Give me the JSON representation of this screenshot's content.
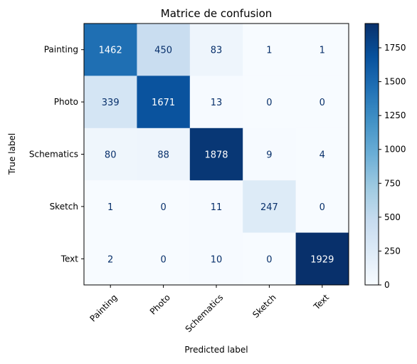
{
  "chart_data": {
    "type": "heatmap",
    "title": "Matrice de confusion",
    "xlabel": "Predicted label",
    "ylabel": "True label",
    "x_categories": [
      "Painting",
      "Photo",
      "Schematics",
      "Sketch",
      "Text"
    ],
    "y_categories": [
      "Painting",
      "Photo",
      "Schematics",
      "Sketch",
      "Text"
    ],
    "matrix": [
      [
        1462,
        450,
        83,
        1,
        1
      ],
      [
        339,
        1671,
        13,
        0,
        0
      ],
      [
        80,
        88,
        1878,
        9,
        4
      ],
      [
        1,
        0,
        11,
        247,
        0
      ],
      [
        2,
        0,
        10,
        0,
        1929
      ]
    ],
    "colormap": "Blues",
    "color_range": [
      0,
      1929
    ],
    "colorbar_ticks": [
      0,
      250,
      500,
      750,
      1000,
      1250,
      1500,
      1750
    ],
    "colorbar_tick_labels": [
      "0",
      "250",
      "500",
      "750",
      "1000",
      "1250",
      "1500",
      "1750"
    ],
    "x_tick_rotation_deg": 45,
    "grid": false,
    "legend": "colorbar-right"
  }
}
